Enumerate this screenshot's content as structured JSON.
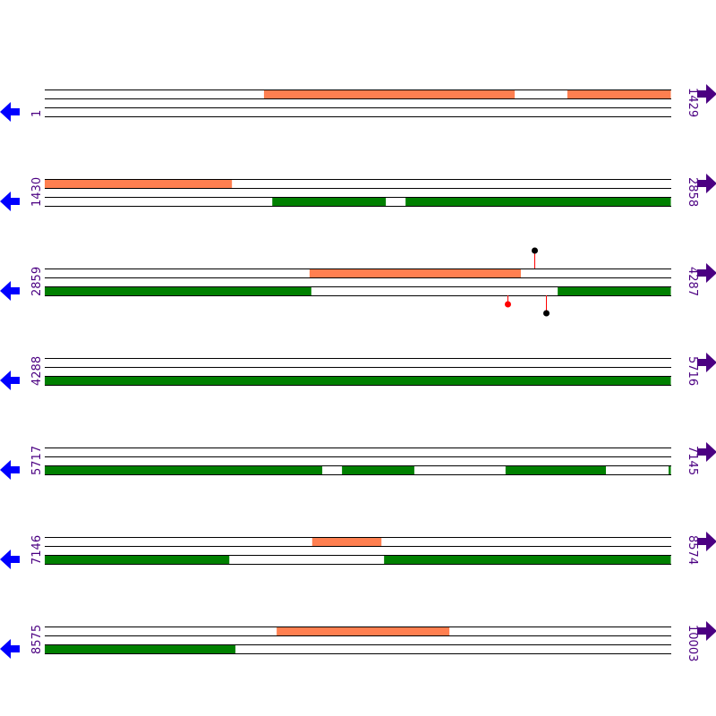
{
  "colors": {
    "orange": "#ff7f50",
    "green": "#008000",
    "left_arrow": "#0000ff",
    "right_arrow": "#4b0082",
    "label": "#4b0082",
    "stem": "#ff0000",
    "marker_black": "#000000",
    "marker_red": "#ff0000"
  },
  "bp_per_row": 1429,
  "rows": [
    {
      "start": "1",
      "end": "1429",
      "s": 1,
      "orange": [
        [
          501,
          1073
        ],
        [
          1193,
          1429
        ]
      ],
      "green": []
    },
    {
      "start": "1430",
      "end": "2858",
      "s": 1430,
      "orange": [
        [
          1430,
          1857
        ]
      ],
      "green": [
        [
          1949,
          2208
        ],
        [
          2253,
          2858
        ]
      ]
    },
    {
      "start": "2859",
      "end": "4287",
      "s": 2859,
      "orange": [
        [
          3463,
          3945
        ]
      ],
      "green": [
        [
          2859,
          3467
        ],
        [
          4029,
          4287
        ]
      ],
      "markers": [
        {
          "pos": 3976,
          "strand": "top",
          "color": "#000000"
        },
        {
          "pos": 3914,
          "strand": "bottom",
          "color": "#ff0000"
        },
        {
          "pos": 4002,
          "strand": "bottom",
          "color": "#000000",
          "long": true
        }
      ]
    },
    {
      "start": "4288",
      "end": "5716",
      "s": 4288,
      "orange": [],
      "green": [
        [
          4288,
          5716
        ]
      ]
    },
    {
      "start": "5717",
      "end": "7145",
      "s": 5717,
      "orange": [],
      "green": [
        [
          5717,
          6350
        ],
        [
          6395,
          6560
        ],
        [
          6768,
          6997
        ],
        [
          7140,
          7145
        ]
      ]
    },
    {
      "start": "7146",
      "end": "8574",
      "s": 7146,
      "orange": [
        [
          7756,
          7914
        ]
      ],
      "green": [
        [
          7146,
          7567
        ],
        [
          7920,
          8574
        ]
      ]
    },
    {
      "start": "8575",
      "end": "10003",
      "s": 8575,
      "orange": [
        [
          9104,
          9498
        ]
      ],
      "green": [
        [
          8575,
          9010
        ]
      ]
    }
  ]
}
